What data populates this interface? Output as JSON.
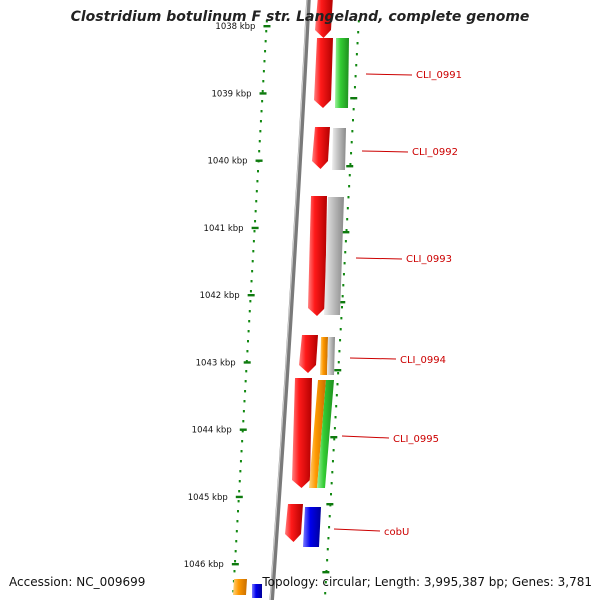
{
  "title": "Clostridium botulinum F str. Langeland, complete genome",
  "footer": {
    "accession": "Accession: NC_009699",
    "summary": "Topology: circular; Length: 3,995,387 bp; Genes: 3,781"
  },
  "axis": {
    "unit": "kbp",
    "ticks": [
      {
        "label": "1038 kbp",
        "kbp": 1038
      },
      {
        "label": "1039 kbp",
        "kbp": 1039
      },
      {
        "label": "1040 kbp",
        "kbp": 1040
      },
      {
        "label": "1041 kbp",
        "kbp": 1041
      },
      {
        "label": "1042 kbp",
        "kbp": 1042
      },
      {
        "label": "1043 kbp",
        "kbp": 1043
      },
      {
        "label": "1044 kbp",
        "kbp": 1044
      },
      {
        "label": "1045 kbp",
        "kbp": 1045
      },
      {
        "label": "1046 kbp",
        "kbp": 1046
      }
    ]
  },
  "genes": [
    {
      "label": "CLI_0991"
    },
    {
      "label": "CLI_0992"
    },
    {
      "label": "CLI_0993"
    },
    {
      "label": "CLI_0994"
    },
    {
      "label": "CLI_0995"
    },
    {
      "label": "cobU"
    }
  ],
  "colors": {
    "backbone": "#777777",
    "scale_dots": "#118811",
    "gene": "#ee0000",
    "label": "#cc0000",
    "orange": "#ff9900",
    "green": "#33cc33",
    "gray": "#b5b5b5",
    "blue": "#0000ee"
  }
}
